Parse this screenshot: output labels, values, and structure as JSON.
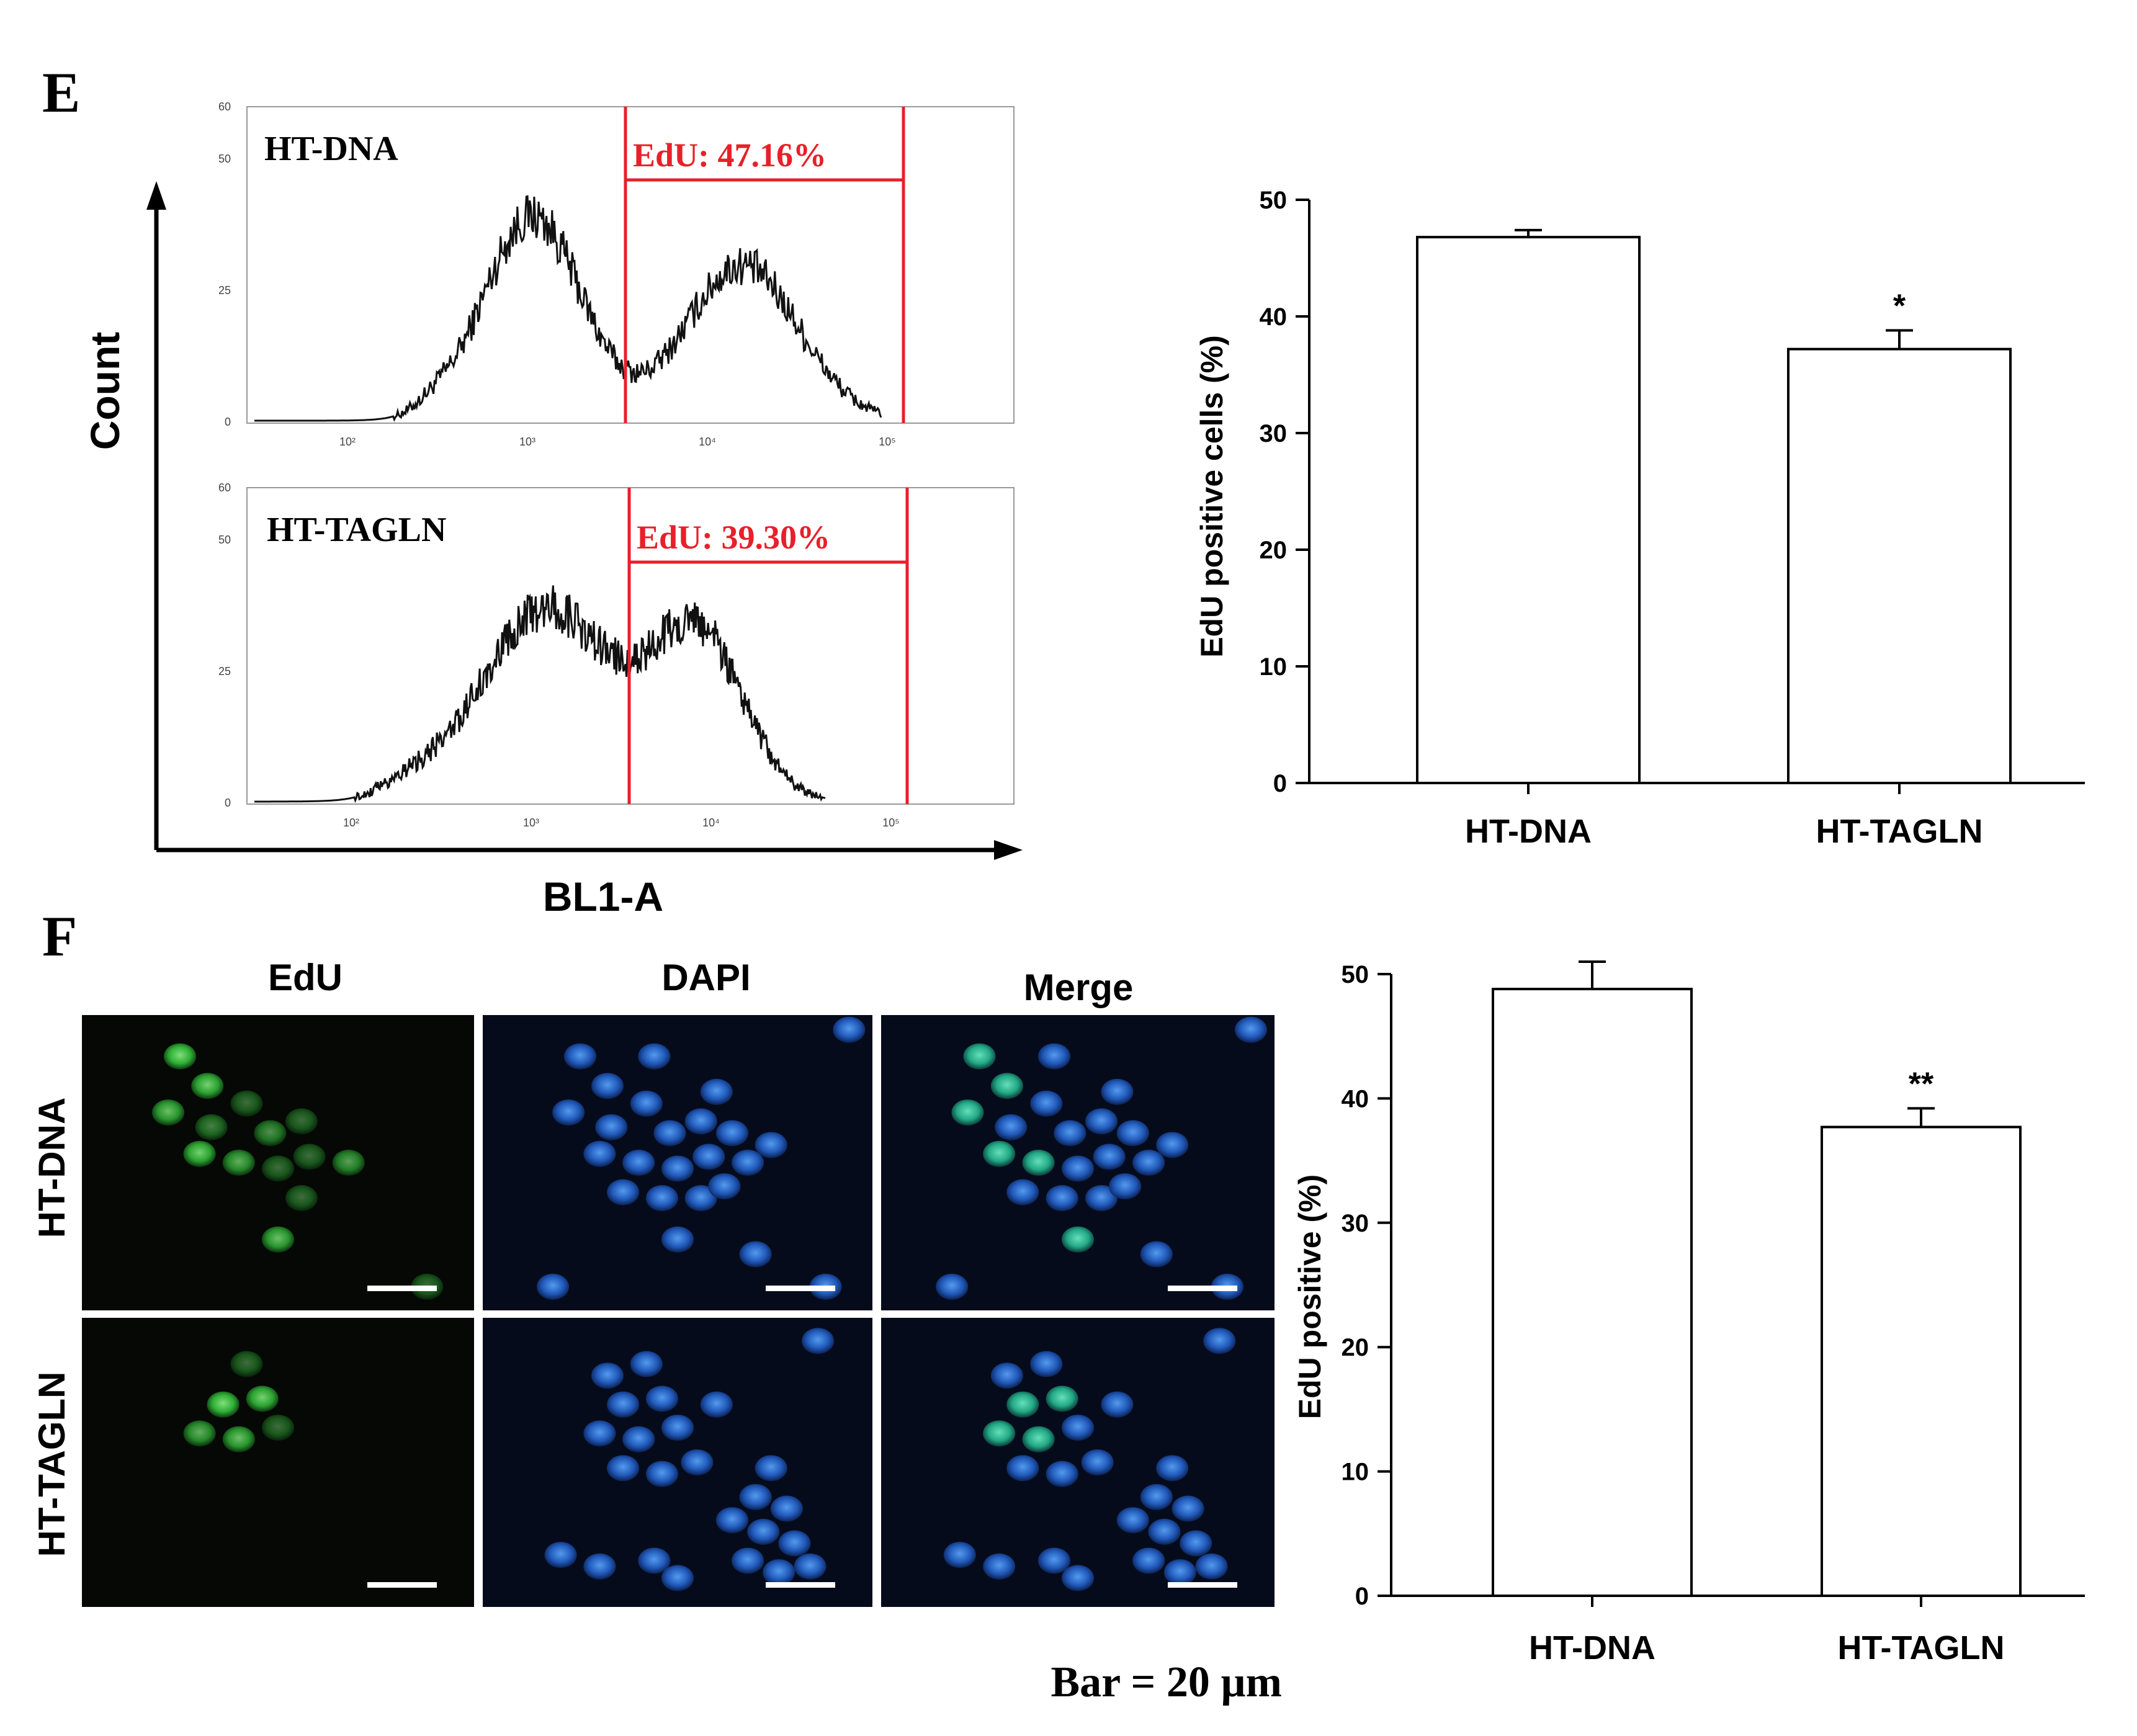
{
  "panels": {
    "e_label": "E",
    "f_label": "F",
    "scale_bar_note": "Bar = 20 µm"
  },
  "colors": {
    "gate": "#e8202a",
    "trace": "#111111",
    "edu_green": "#2fbf3a",
    "dapi_blue": "#2a6fd6",
    "merge_cyan": "#2fd0a8"
  },
  "flow": {
    "y_axis_label": "Count",
    "x_axis_label": "BL1-A",
    "y_ticks": [
      "0",
      "25",
      "50",
      "60"
    ],
    "x_ticks": [
      "10²",
      "10³",
      "10⁴",
      "10⁵"
    ],
    "histograms": [
      {
        "sample": "HT-DNA",
        "gate_label": "EdU: 47.16%"
      },
      {
        "sample": "HT-TAGLN",
        "gate_label": "EdU: 39.30%"
      }
    ]
  },
  "chart_data": [
    {
      "type": "bar",
      "ylabel": "EdU positive cells (%)",
      "ylim": [
        0,
        50
      ],
      "yticks": [
        0,
        10,
        20,
        30,
        40,
        50
      ],
      "categories": [
        "HT-DNA",
        "HT-TAGLN"
      ],
      "values": [
        46.8,
        37.2
      ],
      "errors": [
        0.6,
        1.6
      ],
      "annotations": [
        "",
        "*"
      ]
    },
    {
      "type": "bar",
      "ylabel": "EdU positive (%)",
      "ylim": [
        0,
        50
      ],
      "yticks": [
        0,
        10,
        20,
        30,
        40,
        50
      ],
      "categories": [
        "HT-DNA",
        "HT-TAGLN"
      ],
      "values": [
        48.8,
        37.7
      ],
      "errors": [
        2.2,
        1.5
      ],
      "annotations": [
        "",
        "**"
      ]
    }
  ],
  "microscopy": {
    "columns": [
      "EdU",
      "DAPI",
      "Merge"
    ],
    "rows": [
      "HT-DNA",
      "HT-TAGLN"
    ]
  }
}
